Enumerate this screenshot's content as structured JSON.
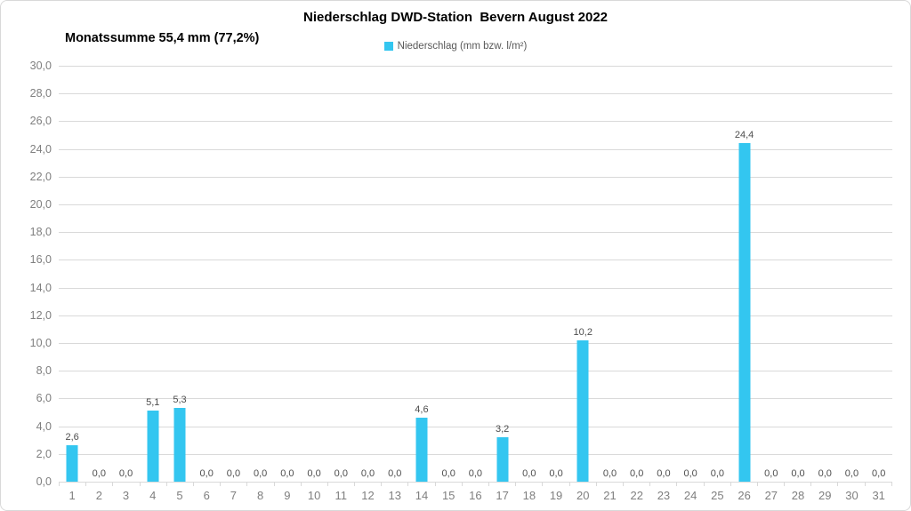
{
  "header": {
    "title": "Niederschlag DWD-Station  Bevern August 2022",
    "subtitle": "Monatssumme 55,4 mm (77,2%)"
  },
  "legend": {
    "label": "Niederschlag (mm bzw. l/m²)"
  },
  "colors": {
    "bar": "#33c6f0",
    "grid": "#d9d9d9",
    "border": "#d9d9d9",
    "axis_text": "#7f7f7f",
    "data_label_text": "#4d4d4d",
    "legend_text": "#595959",
    "title_text": "#000000"
  },
  "chart_data": {
    "type": "bar",
    "title": "Niederschlag DWD-Station  Bevern August 2022",
    "subtitle": "Monatssumme 55,4 mm (77,2%)",
    "legend_entries": [
      "Niederschlag (mm bzw. l/m²)"
    ],
    "legend_position": "top-center",
    "xlabel": "",
    "ylabel": "",
    "ylim": [
      0,
      30
    ],
    "ytick_step": 2,
    "y_tick_labels": [
      "0,0",
      "2,0",
      "4,0",
      "6,0",
      "8,0",
      "10,0",
      "12,0",
      "14,0",
      "16,0",
      "18,0",
      "20,0",
      "22,0",
      "24,0",
      "26,0",
      "28,0",
      "30,0"
    ],
    "grid": true,
    "categories": [
      "1",
      "2",
      "3",
      "4",
      "5",
      "6",
      "7",
      "8",
      "9",
      "10",
      "11",
      "12",
      "13",
      "14",
      "15",
      "16",
      "17",
      "18",
      "19",
      "20",
      "21",
      "22",
      "23",
      "24",
      "25",
      "26",
      "27",
      "28",
      "29",
      "30",
      "31"
    ],
    "values": [
      2.6,
      0.0,
      0.0,
      5.1,
      5.3,
      0.0,
      0.0,
      0.0,
      0.0,
      0.0,
      0.0,
      0.0,
      0.0,
      4.6,
      0.0,
      0.0,
      3.2,
      0.0,
      0.0,
      10.2,
      0.0,
      0.0,
      0.0,
      0.0,
      0.0,
      24.4,
      0.0,
      0.0,
      0.0,
      0.0,
      0.0
    ],
    "value_labels": [
      "2,6",
      "0,0",
      "0,0",
      "5,1",
      "5,3",
      "0,0",
      "0,0",
      "0,0",
      "0,0",
      "0,0",
      "0,0",
      "0,0",
      "0,0",
      "4,6",
      "0,0",
      "0,0",
      "3,2",
      "0,0",
      "0,0",
      "10,2",
      "0,0",
      "0,0",
      "0,0",
      "0,0",
      "0,0",
      "24,4",
      "0,0",
      "0,0",
      "0,0",
      "0,0",
      "0,0"
    ]
  }
}
